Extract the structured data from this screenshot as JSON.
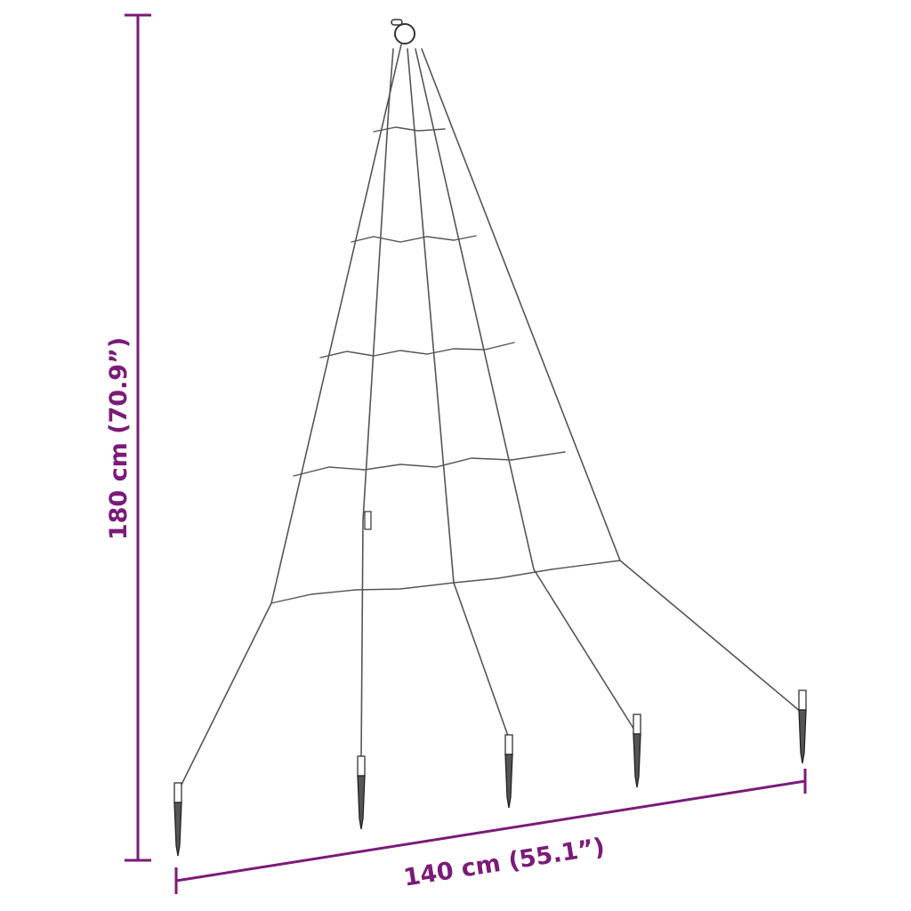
{
  "dimensions": {
    "height_label": "180 cm (70.9”)",
    "width_label": "140 cm (55.1”)"
  },
  "colors": {
    "dimension": "#7b1a78",
    "wire": "#555555",
    "background": "#ffffff"
  },
  "product": {
    "strand_count": 5,
    "ring_count": 5,
    "stake_count": 5
  }
}
